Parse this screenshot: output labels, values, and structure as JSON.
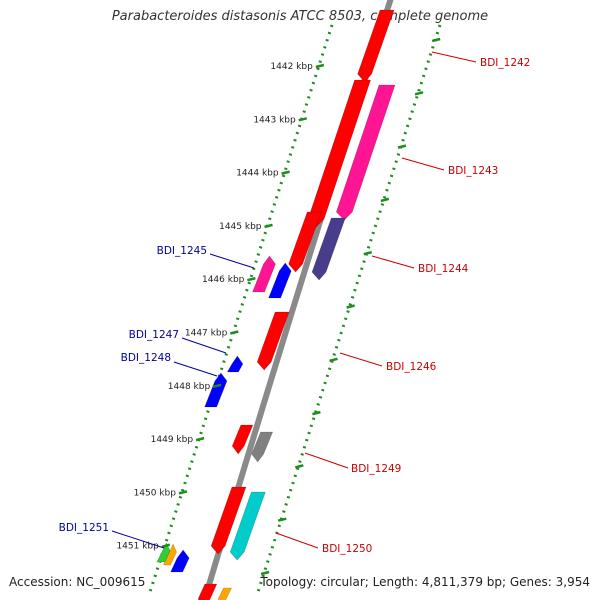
{
  "title": "Parabacteroides distasonis ATCC 8503, complete genome",
  "footer": {
    "accession": "Accession: NC_009615",
    "summary": "Topology: circular; Length: 4,811,379 bp; Genes: 3,954"
  },
  "colors": {
    "backbone": "#8a8a8a",
    "tick": "#1e8c1e",
    "forward_label": "#000099",
    "reverse_label": "#cc0000"
  },
  "kbp_ticks": [
    "1442 kbp",
    "1443 kbp",
    "1444 kbp",
    "1445 kbp",
    "1446 kbp",
    "1447 kbp",
    "1448 kbp",
    "1449 kbp",
    "1450 kbp",
    "1451 kbp"
  ],
  "gene_labels": [
    {
      "name": "BDI_1242",
      "strand": "reverse"
    },
    {
      "name": "BDI_1243",
      "strand": "reverse"
    },
    {
      "name": "BDI_1244",
      "strand": "reverse"
    },
    {
      "name": "BDI_1245",
      "strand": "forward"
    },
    {
      "name": "BDI_1246",
      "strand": "reverse"
    },
    {
      "name": "BDI_1247",
      "strand": "forward"
    },
    {
      "name": "BDI_1248",
      "strand": "forward"
    },
    {
      "name": "BDI_1249",
      "strand": "reverse"
    },
    {
      "name": "BDI_1250",
      "strand": "reverse"
    },
    {
      "name": "BDI_1251",
      "strand": "forward"
    }
  ],
  "feature_colors": {
    "red": "#ff0000",
    "magenta": "#ff1493",
    "navy": "#483d8b",
    "blue": "#0000ff",
    "gray": "#808080",
    "cyan": "#00cccc",
    "green": "#32cd32",
    "orange": "#ffa500"
  }
}
